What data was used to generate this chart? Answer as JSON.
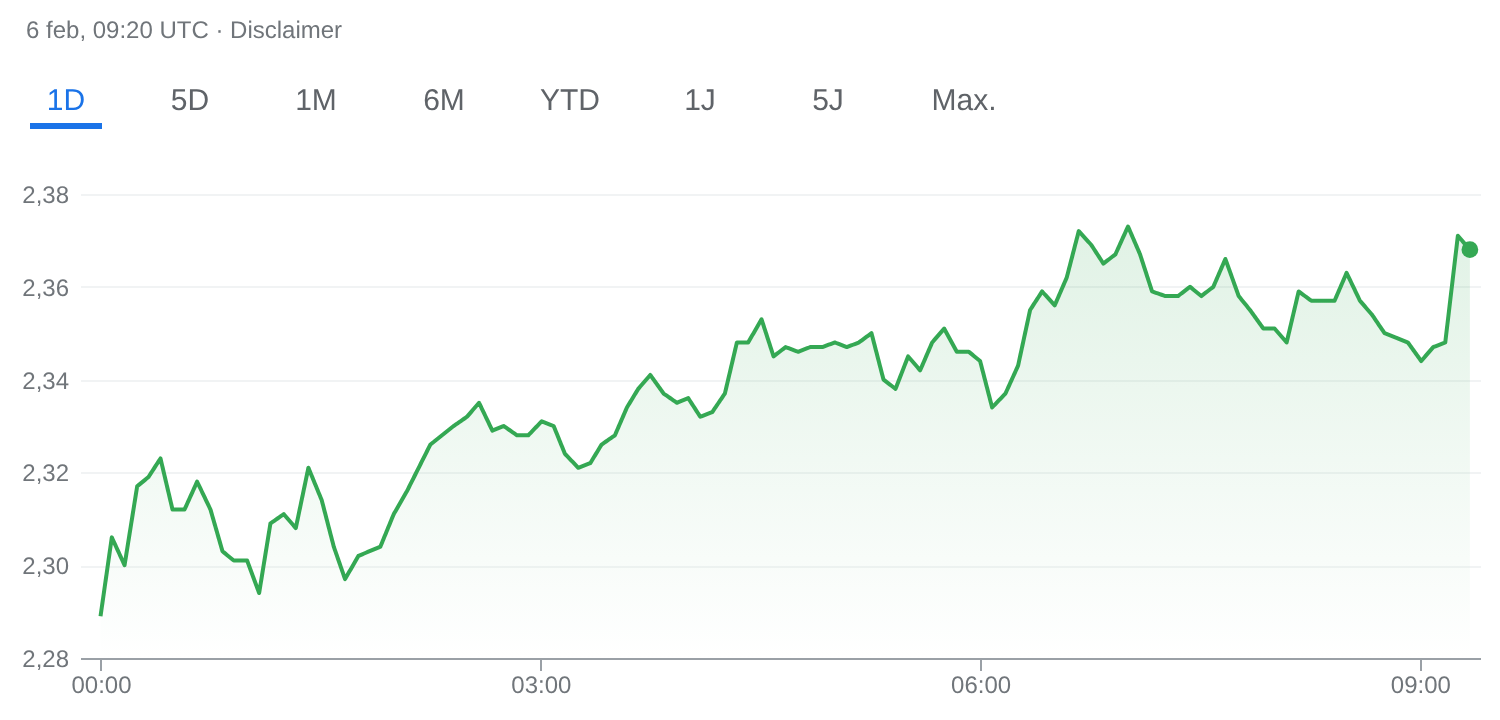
{
  "chart_data": {
    "type": "area",
    "subtitle": "6 feb, 09:20 UTC · Disclaimer",
    "annotations": [
      "1D",
      "5D",
      "1M",
      "6M",
      "YTD",
      "1J",
      "5J",
      "Max."
    ],
    "xlim": [
      -0.14,
      9.41
    ],
    "ylim": [
      2.28,
      2.38
    ],
    "xticks": [
      {
        "value": 0,
        "label": "00:00"
      },
      {
        "value": 3,
        "label": "03:00"
      },
      {
        "value": 6,
        "label": "06:00"
      },
      {
        "value": 9,
        "label": "09:00"
      }
    ],
    "yticks": [
      {
        "value": 2.28,
        "label": "2,28"
      },
      {
        "value": 2.3,
        "label": "2,30"
      },
      {
        "value": 2.32,
        "label": "2,32"
      },
      {
        "value": 2.34,
        "label": "2,34"
      },
      {
        "value": 2.36,
        "label": "2,36"
      },
      {
        "value": 2.38,
        "label": "2,38"
      }
    ],
    "grid": "y",
    "line_style": "solid",
    "series": [
      {
        "color": "#34a853",
        "marker": "none",
        "x": [
          0,
          0.077,
          0.164,
          0.25,
          0.327,
          0.409,
          0.491,
          0.573,
          0.659,
          0.75,
          0.832,
          0.909,
          1.0,
          1.082,
          1.159,
          1.25,
          1.332,
          1.418,
          1.509,
          1.591,
          1.668,
          1.759,
          1.909,
          2.0,
          2.091,
          2.25,
          2.409,
          2.5,
          2.582,
          2.673,
          2.75,
          2.841,
          2.918,
          3.009,
          3.091,
          3.168,
          3.259,
          3.341,
          3.418,
          3.509,
          3.591,
          3.668,
          3.75,
          3.841,
          3.932,
          4.009,
          4.091,
          4.173,
          4.259,
          4.341,
          4.418,
          4.509,
          4.591,
          4.673,
          4.759,
          4.841,
          4.923,
          5.009,
          5.091,
          5.173,
          5.259,
          5.341,
          5.423,
          5.509,
          5.591,
          5.673,
          5.755,
          5.841,
          5.923,
          6.0,
          6.082,
          6.173,
          6.259,
          6.341,
          6.423,
          6.509,
          6.591,
          6.673,
          6.759,
          6.841,
          6.923,
          7.009,
          7.091,
          7.173,
          7.264,
          7.35,
          7.432,
          7.509,
          7.591,
          7.673,
          7.764,
          7.841,
          7.932,
          8.009,
          8.091,
          8.173,
          8.259,
          8.418,
          8.5,
          8.591,
          8.673,
          8.759,
          8.841,
          8.918,
          9.009,
          9.091,
          9.173,
          9.259,
          9.341
        ],
        "values": [
          2.289,
          2.306,
          2.3,
          2.317,
          2.319,
          2.323,
          2.312,
          2.312,
          2.318,
          2.312,
          2.303,
          2.301,
          2.301,
          2.294,
          2.309,
          2.311,
          2.308,
          2.321,
          2.314,
          2.304,
          2.297,
          2.302,
          2.304,
          2.311,
          2.316,
          2.326,
          2.33,
          2.332,
          2.335,
          2.329,
          2.33,
          2.328,
          2.328,
          2.331,
          2.33,
          2.324,
          2.321,
          2.322,
          2.326,
          2.328,
          2.334,
          2.338,
          2.341,
          2.337,
          2.335,
          2.336,
          2.332,
          2.333,
          2.337,
          2.348,
          2.348,
          2.353,
          2.345,
          2.347,
          2.346,
          2.347,
          2.347,
          2.348,
          2.347,
          2.348,
          2.35,
          2.34,
          2.338,
          2.345,
          2.342,
          2.348,
          2.351,
          2.346,
          2.346,
          2.344,
          2.334,
          2.337,
          2.343,
          2.355,
          2.359,
          2.356,
          2.362,
          2.372,
          2.369,
          2.365,
          2.367,
          2.373,
          2.367,
          2.359,
          2.358,
          2.358,
          2.36,
          2.358,
          2.36,
          2.366,
          2.358,
          2.355,
          2.351,
          2.351,
          2.348,
          2.359,
          2.357,
          2.357,
          2.363,
          2.357,
          2.354,
          2.35,
          2.349,
          2.348,
          2.344,
          2.347,
          2.348,
          2.371,
          2.368
        ]
      },
      {
        "type": "scatter",
        "color": "#34a853",
        "marker": "circle",
        "x": [
          9.341
        ],
        "values": [
          2.368
        ]
      }
    ]
  }
}
